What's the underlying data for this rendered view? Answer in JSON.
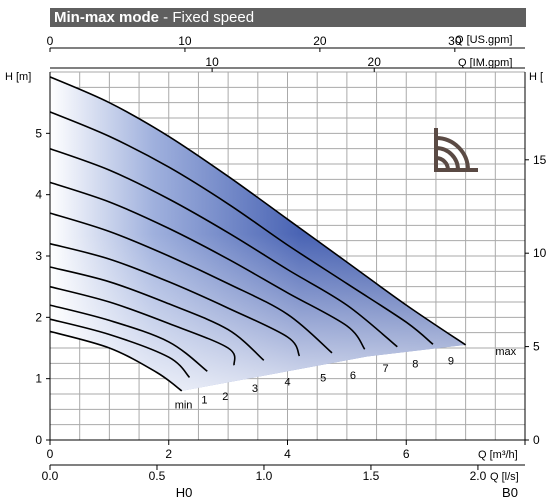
{
  "title": {
    "mode": "Min-max mode",
    "separator": " - ",
    "subtitle": "Fixed speed"
  },
  "icon": "wireless-signal-icon",
  "colors": {
    "title_bg": "#5f5f5f",
    "fill_dark": "#3b56a8",
    "fill_light": "#ffffff",
    "curve": "#000000",
    "grid": "#aaaaaa"
  },
  "chart_data": {
    "type": "line",
    "title": "Min-max mode - Fixed speed",
    "grid": true,
    "axes": {
      "left": {
        "label": "H [m]",
        "range": [
          0,
          6.0
        ],
        "ticks": [
          "0",
          "1",
          "2",
          "3",
          "4",
          "5"
        ]
      },
      "right": {
        "label": "H [",
        "range": [
          0,
          19.7
        ],
        "ticks": [
          "0",
          "5",
          "10",
          "15"
        ]
      },
      "bottom_m3h": {
        "label": "Q [m³/h]",
        "range": [
          0,
          8.0
        ],
        "ticks": [
          "0",
          "2",
          "4",
          "6"
        ]
      },
      "bottom_ls": {
        "label": "Q [l/s]",
        "range": [
          0,
          2.22
        ],
        "ticks": [
          "0.0",
          "0.5",
          "1.0",
          "1.5",
          "2.0"
        ]
      },
      "top_usgpm": {
        "label": "Q [US.gpm]",
        "range": [
          0,
          35.2
        ],
        "ticks": [
          "0",
          "10",
          "20",
          "30"
        ]
      },
      "top_imgpm": {
        "label": "Q [IM.gpm]",
        "range": [
          0,
          29.3
        ],
        "ticks": [
          "10",
          "20"
        ]
      }
    },
    "x_unit": "m3/h",
    "y_unit": "m",
    "series": [
      {
        "name": "max",
        "points": [
          [
            0,
            5.92
          ],
          [
            1,
            5.5
          ],
          [
            2,
            4.95
          ],
          [
            3,
            4.3
          ],
          [
            4,
            3.6
          ],
          [
            5,
            2.9
          ],
          [
            6,
            2.2
          ],
          [
            7,
            1.55
          ]
        ]
      },
      {
        "name": "9",
        "points": [
          [
            0,
            5.35
          ],
          [
            1,
            4.95
          ],
          [
            2,
            4.45
          ],
          [
            3,
            3.85
          ],
          [
            4,
            3.18
          ],
          [
            5,
            2.55
          ],
          [
            6,
            1.92
          ],
          [
            6.45,
            1.56
          ]
        ]
      },
      {
        "name": "8",
        "points": [
          [
            0,
            4.75
          ],
          [
            1,
            4.4
          ],
          [
            2,
            3.93
          ],
          [
            3,
            3.38
          ],
          [
            4,
            2.78
          ],
          [
            5,
            2.2
          ],
          [
            5.85,
            1.52
          ]
        ]
      },
      {
        "name": "7",
        "points": [
          [
            0,
            4.2
          ],
          [
            1,
            3.88
          ],
          [
            2,
            3.45
          ],
          [
            3,
            2.95
          ],
          [
            4,
            2.4
          ],
          [
            5,
            1.86
          ],
          [
            5.3,
            1.48
          ]
        ]
      },
      {
        "name": "6",
        "points": [
          [
            0,
            3.7
          ],
          [
            1,
            3.4
          ],
          [
            2,
            3.0
          ],
          [
            3,
            2.55
          ],
          [
            4,
            2.05
          ],
          [
            4.75,
            1.42
          ]
        ]
      },
      {
        "name": "5",
        "points": [
          [
            0,
            3.2
          ],
          [
            1,
            2.95
          ],
          [
            2,
            2.58
          ],
          [
            3,
            2.15
          ],
          [
            4,
            1.68
          ],
          [
            4.2,
            1.37
          ]
        ]
      },
      {
        "name": "4",
        "points": [
          [
            0,
            2.82
          ],
          [
            1,
            2.58
          ],
          [
            2,
            2.22
          ],
          [
            3,
            1.8
          ],
          [
            3.6,
            1.3
          ]
        ]
      },
      {
        "name": "3",
        "points": [
          [
            0,
            2.5
          ],
          [
            1,
            2.25
          ],
          [
            2,
            1.9
          ],
          [
            3,
            1.5
          ],
          [
            3.1,
            1.22
          ]
        ]
      },
      {
        "name": "2",
        "points": [
          [
            0,
            2.2
          ],
          [
            1,
            1.95
          ],
          [
            2,
            1.6
          ],
          [
            2.65,
            1.12
          ]
        ]
      },
      {
        "name": "1",
        "points": [
          [
            0,
            1.97
          ],
          [
            1,
            1.72
          ],
          [
            2,
            1.35
          ],
          [
            2.35,
            1.02
          ]
        ]
      },
      {
        "name": "min",
        "points": [
          [
            0,
            1.77
          ],
          [
            1,
            1.5
          ],
          [
            1.8,
            1.1
          ],
          [
            2.22,
            0.8
          ]
        ]
      }
    ],
    "curve_labels": [
      {
        "text": "max",
        "x": 7.5,
        "y": 1.45
      },
      {
        "text": "9",
        "x": 6.7,
        "y": 1.3
      },
      {
        "text": "8",
        "x": 6.1,
        "y": 1.25
      },
      {
        "text": "7",
        "x": 5.6,
        "y": 1.17
      },
      {
        "text": "6",
        "x": 5.05,
        "y": 1.06
      },
      {
        "text": "5",
        "x": 4.55,
        "y": 1.02
      },
      {
        "text": "4",
        "x": 3.95,
        "y": 0.95
      },
      {
        "text": "3",
        "x": 3.4,
        "y": 0.85
      },
      {
        "text": "2",
        "x": 2.9,
        "y": 0.72
      },
      {
        "text": "1",
        "x": 2.55,
        "y": 0.66
      },
      {
        "text": "min",
        "x": 2.1,
        "y": 0.58
      }
    ],
    "footer_labels": [
      "H0",
      "B0"
    ]
  }
}
